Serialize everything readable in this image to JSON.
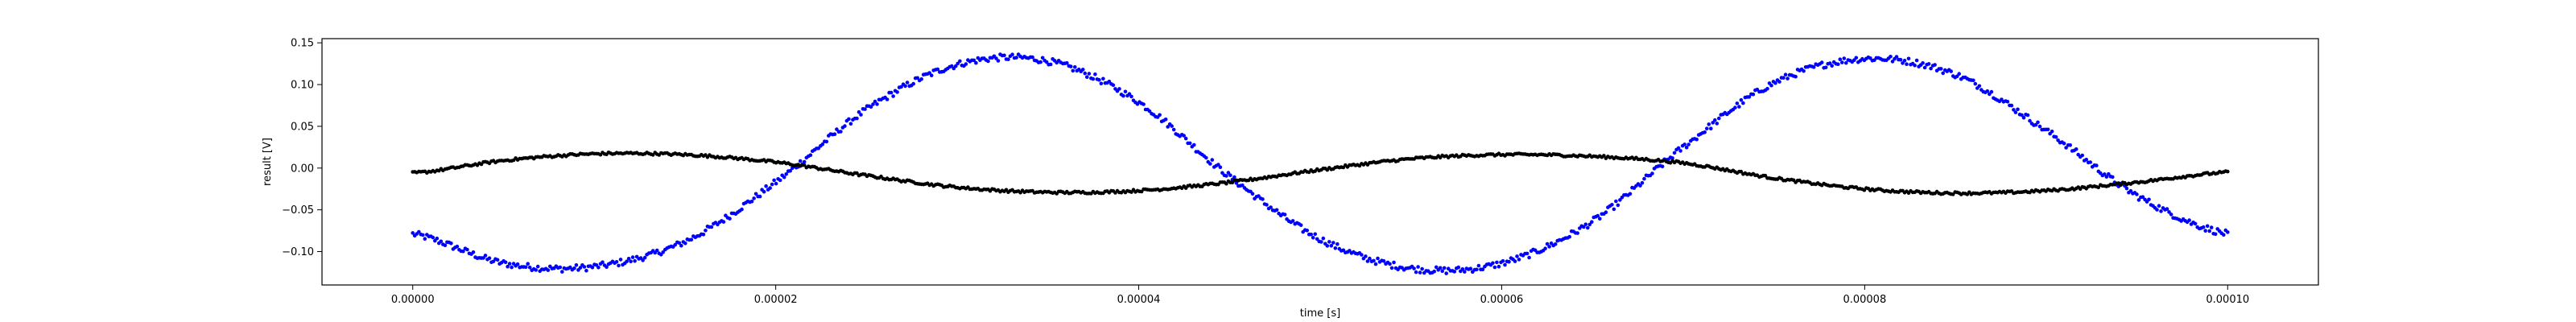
{
  "chart_data": {
    "type": "scatter",
    "title": "",
    "xlabel": "time [s]",
    "ylabel": "result [V]",
    "xlim": [
      -5e-06,
      0.000105
    ],
    "ylim": [
      -0.14,
      0.155
    ],
    "x_ticks": [
      0,
      2e-05,
      4e-05,
      6e-05,
      8e-05,
      0.0001
    ],
    "x_tick_labels": [
      "0.00000",
      "0.00002",
      "0.00004",
      "0.00006",
      "0.00008",
      "0.00010"
    ],
    "y_ticks": [
      -0.1,
      -0.05,
      0,
      0.05,
      0.1,
      0.15
    ],
    "y_tick_labels": [
      "−0.10",
      "−0.05",
      "0.00",
      "0.05",
      "0.10",
      "0.15"
    ],
    "grid": false,
    "legend": "none",
    "series": [
      {
        "color": "#0000ff",
        "marker": "dot",
        "x": [
          0,
          5e-06,
          1e-05,
          1.5e-05,
          2e-05,
          2.5e-05,
          3e-05,
          3.5e-05,
          4e-05,
          4.5e-05,
          5e-05,
          5.5e-05,
          6e-05,
          6.5e-05,
          7e-05,
          7.5e-05,
          8e-05,
          8.5e-05,
          9e-05,
          9.5e-05,
          0.0001
        ],
        "y": [
          -0.079,
          -0.114,
          -0.118,
          -0.088,
          -0.017,
          0.07,
          0.124,
          0.128,
          0.079,
          -0.01,
          -0.085,
          -0.12,
          -0.114,
          -0.064,
          0.025,
          0.102,
          0.131,
          0.112,
          0.045,
          -0.033,
          -0.079
        ],
        "noise": 0.004
      },
      {
        "color": "#000000",
        "marker": "dot",
        "x": [
          0,
          5e-06,
          1e-05,
          1.5e-05,
          2e-05,
          2.5e-05,
          3e-05,
          3.5e-05,
          4e-05,
          4.5e-05,
          5e-05,
          5.5e-05,
          6e-05,
          6.5e-05,
          7e-05,
          7.5e-05,
          8e-05,
          8.5e-05,
          9e-05,
          9.5e-05,
          0.0001
        ],
        "y": [
          -0.006,
          0.009,
          0.017,
          0.016,
          0.007,
          -0.009,
          -0.023,
          -0.029,
          -0.027,
          -0.017,
          -0.002,
          0.011,
          0.016,
          0.014,
          0.006,
          -0.012,
          -0.025,
          -0.03,
          -0.027,
          -0.017,
          -0.005
        ],
        "noise": 0.0015
      }
    ]
  }
}
